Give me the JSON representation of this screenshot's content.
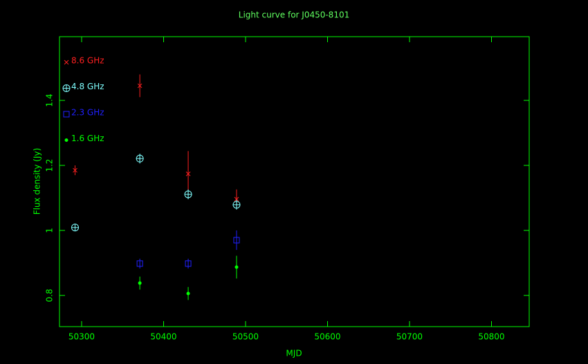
{
  "chart_data": {
    "type": "scatter",
    "title": "Light curve for J0450-8101",
    "x_label": "MJD",
    "y_label": "Flux density (Jy)",
    "xlim": [
      50273,
      50846
    ],
    "ylim": [
      0.704,
      1.596
    ],
    "xticks": [
      50300,
      50400,
      50500,
      50600,
      50700,
      50800
    ],
    "yticks": [
      {
        "value": 0.8,
        "label": "0.8"
      },
      {
        "value": 1.0,
        "label": "1"
      },
      {
        "value": 1.2,
        "label": "1.2"
      },
      {
        "value": 1.4,
        "label": "1.4"
      }
    ],
    "legend": "upper left",
    "series": [
      {
        "name": "8.6 GHz",
        "color": "#ff2020",
        "marker": "x",
        "x": [
          50292,
          50371,
          50430,
          50489
        ],
        "values": [
          1.185,
          1.445,
          1.174,
          1.096
        ],
        "errors": [
          0.015,
          0.035,
          0.07,
          0.03
        ]
      },
      {
        "name": "4.8 GHz",
        "color": "#80ffff",
        "marker": "circle-plus",
        "x": [
          50292,
          50371,
          50430,
          50489
        ],
        "values": [
          1.009,
          1.221,
          1.111,
          1.079
        ],
        "errors": [
          0.01,
          0.015,
          0.015,
          0.015
        ]
      },
      {
        "name": "2.3 GHz",
        "color": "#2020ff",
        "marker": "square",
        "x": [
          50371,
          50430,
          50489
        ],
        "values": [
          0.898,
          0.898,
          0.97
        ],
        "errors": [
          0.015,
          0.015,
          0.03
        ]
      },
      {
        "name": "1.6 GHz",
        "color": "#00ff00",
        "marker": "dot",
        "x": [
          50371,
          50430,
          50489
        ],
        "values": [
          0.838,
          0.806,
          0.887
        ],
        "errors": [
          0.02,
          0.02,
          0.035
        ]
      }
    ]
  }
}
